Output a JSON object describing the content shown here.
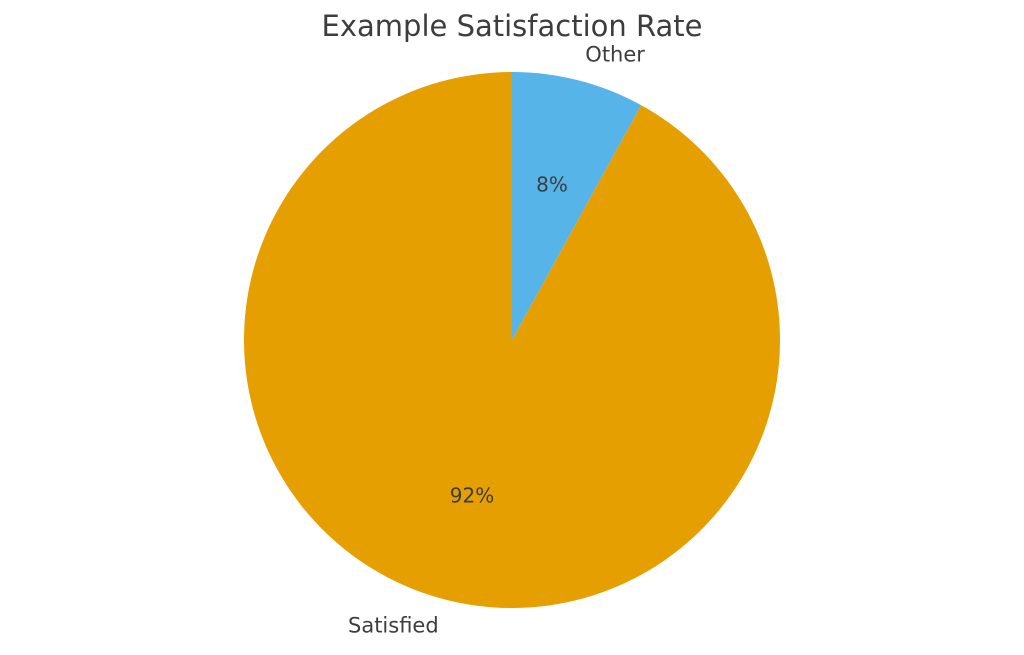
{
  "chart_data": {
    "type": "pie",
    "title": "Example Satisfaction Rate",
    "categories": [
      "Satisfied",
      "Other"
    ],
    "values": [
      92,
      8
    ],
    "slices": [
      {
        "label": "Satisfied",
        "value": 92,
        "pct_label": "92%",
        "color": "#E69F00"
      },
      {
        "label": "Other",
        "value": 8,
        "pct_label": "8%",
        "color": "#56B4E9"
      }
    ],
    "start_angle_deg": 90,
    "direction": "counterclockwise",
    "label_distance": 1.1,
    "pct_distance": 0.6,
    "legend": false,
    "background_color": "#ffffff",
    "text_color": "#3d3d3d"
  }
}
